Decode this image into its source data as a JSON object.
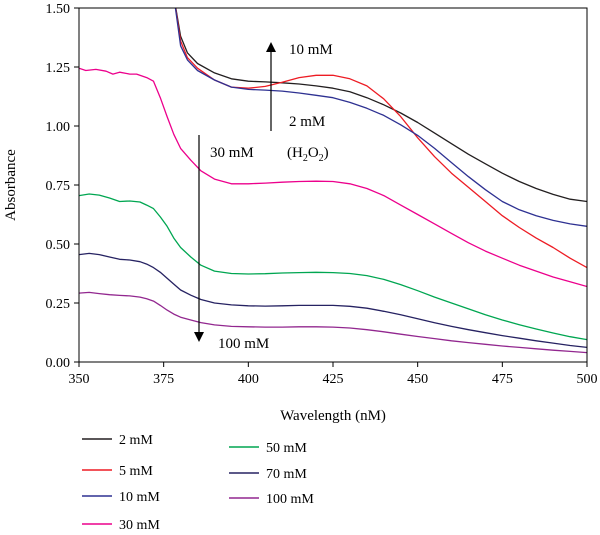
{
  "chart_data": {
    "type": "line",
    "title": "",
    "xlabel": "Wavelength (nM)",
    "ylabel": "Absorbance",
    "xlim": [
      350,
      500
    ],
    "ylim": [
      0,
      1.5
    ],
    "x_ticks": [
      "350",
      "375",
      "400",
      "425",
      "450",
      "475",
      "500"
    ],
    "y_ticks": [
      "0.00",
      "0.25",
      "0.50",
      "0.75",
      "1.00",
      "1.25",
      "1.50"
    ],
    "grid": false,
    "legend_position": "bottom",
    "annotations": {
      "up_top": "10 mM",
      "up_bottom": "2 mM",
      "h2o2_open": "(H",
      "h2o2_sub1": "2",
      "h2o2_mid": "O",
      "h2o2_sub2": "2",
      "h2o2_close": ")",
      "down_top": "30 mM",
      "down_bottom": "100 mM"
    },
    "series": [
      {
        "name": "2 mM",
        "color": "#231f20",
        "points": [
          [
            378,
            1.55
          ],
          [
            380,
            1.38
          ],
          [
            382,
            1.31
          ],
          [
            385,
            1.265
          ],
          [
            390,
            1.225
          ],
          [
            395,
            1.2
          ],
          [
            400,
            1.19
          ],
          [
            405,
            1.187
          ],
          [
            410,
            1.183
          ],
          [
            415,
            1.178
          ],
          [
            420,
            1.17
          ],
          [
            425,
            1.16
          ],
          [
            430,
            1.145
          ],
          [
            435,
            1.12
          ],
          [
            440,
            1.09
          ],
          [
            445,
            1.055
          ],
          [
            450,
            1.015
          ],
          [
            455,
            0.97
          ],
          [
            460,
            0.925
          ],
          [
            465,
            0.88
          ],
          [
            470,
            0.84
          ],
          [
            475,
            0.8
          ],
          [
            480,
            0.765
          ],
          [
            485,
            0.735
          ],
          [
            490,
            0.71
          ],
          [
            495,
            0.69
          ],
          [
            500,
            0.68
          ]
        ]
      },
      {
        "name": "5 mM",
        "color": "#ed1c24",
        "points": [
          [
            378,
            1.55
          ],
          [
            380,
            1.36
          ],
          [
            382,
            1.29
          ],
          [
            385,
            1.245
          ],
          [
            390,
            1.195
          ],
          [
            395,
            1.165
          ],
          [
            400,
            1.16
          ],
          [
            405,
            1.168
          ],
          [
            410,
            1.185
          ],
          [
            415,
            1.205
          ],
          [
            420,
            1.215
          ],
          [
            425,
            1.215
          ],
          [
            430,
            1.2
          ],
          [
            435,
            1.17
          ],
          [
            440,
            1.115
          ],
          [
            445,
            1.04
          ],
          [
            450,
            0.95
          ],
          [
            455,
            0.87
          ],
          [
            460,
            0.8
          ],
          [
            465,
            0.74
          ],
          [
            470,
            0.68
          ],
          [
            475,
            0.62
          ],
          [
            480,
            0.57
          ],
          [
            485,
            0.525
          ],
          [
            490,
            0.485
          ],
          [
            495,
            0.44
          ],
          [
            500,
            0.4
          ]
        ]
      },
      {
        "name": "10 mM",
        "color": "#2e3192",
        "points": [
          [
            378,
            1.55
          ],
          [
            380,
            1.34
          ],
          [
            382,
            1.28
          ],
          [
            385,
            1.235
          ],
          [
            390,
            1.195
          ],
          [
            395,
            1.165
          ],
          [
            400,
            1.155
          ],
          [
            405,
            1.152
          ],
          [
            410,
            1.148
          ],
          [
            415,
            1.14
          ],
          [
            420,
            1.13
          ],
          [
            425,
            1.12
          ],
          [
            430,
            1.1
          ],
          [
            435,
            1.075
          ],
          [
            440,
            1.045
          ],
          [
            445,
            1.005
          ],
          [
            450,
            0.96
          ],
          [
            455,
            0.905
          ],
          [
            460,
            0.845
          ],
          [
            465,
            0.785
          ],
          [
            470,
            0.73
          ],
          [
            475,
            0.68
          ],
          [
            480,
            0.645
          ],
          [
            485,
            0.62
          ],
          [
            490,
            0.6
          ],
          [
            495,
            0.585
          ],
          [
            500,
            0.575
          ]
        ]
      },
      {
        "name": "30 mM",
        "color": "#ec008c",
        "points": [
          [
            350,
            1.245
          ],
          [
            352,
            1.235
          ],
          [
            355,
            1.24
          ],
          [
            358,
            1.232
          ],
          [
            360,
            1.22
          ],
          [
            362,
            1.228
          ],
          [
            365,
            1.22
          ],
          [
            367,
            1.22
          ],
          [
            370,
            1.205
          ],
          [
            372,
            1.19
          ],
          [
            374,
            1.12
          ],
          [
            376,
            1.04
          ],
          [
            378,
            0.965
          ],
          [
            380,
            0.905
          ],
          [
            383,
            0.855
          ],
          [
            386,
            0.81
          ],
          [
            390,
            0.775
          ],
          [
            395,
            0.755
          ],
          [
            400,
            0.755
          ],
          [
            405,
            0.758
          ],
          [
            410,
            0.762
          ],
          [
            415,
            0.765
          ],
          [
            420,
            0.766
          ],
          [
            425,
            0.765
          ],
          [
            430,
            0.755
          ],
          [
            435,
            0.735
          ],
          [
            440,
            0.705
          ],
          [
            445,
            0.665
          ],
          [
            450,
            0.625
          ],
          [
            455,
            0.585
          ],
          [
            460,
            0.545
          ],
          [
            465,
            0.505
          ],
          [
            470,
            0.47
          ],
          [
            475,
            0.44
          ],
          [
            480,
            0.41
          ],
          [
            485,
            0.385
          ],
          [
            490,
            0.36
          ],
          [
            495,
            0.34
          ],
          [
            500,
            0.32
          ]
        ]
      },
      {
        "name": "50 mM",
        "color": "#00a651",
        "points": [
          [
            350,
            0.705
          ],
          [
            353,
            0.712
          ],
          [
            356,
            0.707
          ],
          [
            359,
            0.695
          ],
          [
            362,
            0.68
          ],
          [
            365,
            0.682
          ],
          [
            368,
            0.678
          ],
          [
            370,
            0.665
          ],
          [
            372,
            0.65
          ],
          [
            374,
            0.615
          ],
          [
            376,
            0.575
          ],
          [
            378,
            0.525
          ],
          [
            380,
            0.485
          ],
          [
            383,
            0.445
          ],
          [
            386,
            0.41
          ],
          [
            390,
            0.385
          ],
          [
            395,
            0.375
          ],
          [
            400,
            0.373
          ],
          [
            405,
            0.374
          ],
          [
            410,
            0.377
          ],
          [
            415,
            0.379
          ],
          [
            420,
            0.38
          ],
          [
            425,
            0.379
          ],
          [
            430,
            0.375
          ],
          [
            435,
            0.366
          ],
          [
            440,
            0.35
          ],
          [
            445,
            0.328
          ],
          [
            450,
            0.302
          ],
          [
            455,
            0.275
          ],
          [
            460,
            0.25
          ],
          [
            465,
            0.225
          ],
          [
            470,
            0.2
          ],
          [
            475,
            0.178
          ],
          [
            480,
            0.158
          ],
          [
            485,
            0.14
          ],
          [
            490,
            0.123
          ],
          [
            495,
            0.107
          ],
          [
            500,
            0.095
          ]
        ]
      },
      {
        "name": "70 mM",
        "color": "#262262",
        "points": [
          [
            350,
            0.455
          ],
          [
            353,
            0.46
          ],
          [
            356,
            0.455
          ],
          [
            359,
            0.445
          ],
          [
            362,
            0.435
          ],
          [
            365,
            0.432
          ],
          [
            368,
            0.425
          ],
          [
            370,
            0.415
          ],
          [
            372,
            0.4
          ],
          [
            374,
            0.38
          ],
          [
            376,
            0.355
          ],
          [
            378,
            0.33
          ],
          [
            380,
            0.305
          ],
          [
            383,
            0.283
          ],
          [
            386,
            0.265
          ],
          [
            390,
            0.25
          ],
          [
            395,
            0.242
          ],
          [
            400,
            0.238
          ],
          [
            405,
            0.237
          ],
          [
            410,
            0.238
          ],
          [
            415,
            0.24
          ],
          [
            420,
            0.24
          ],
          [
            425,
            0.24
          ],
          [
            430,
            0.236
          ],
          [
            435,
            0.228
          ],
          [
            440,
            0.215
          ],
          [
            445,
            0.2
          ],
          [
            450,
            0.183
          ],
          [
            455,
            0.166
          ],
          [
            460,
            0.151
          ],
          [
            465,
            0.137
          ],
          [
            470,
            0.124
          ],
          [
            475,
            0.112
          ],
          [
            480,
            0.101
          ],
          [
            485,
            0.09
          ],
          [
            490,
            0.08
          ],
          [
            495,
            0.07
          ],
          [
            500,
            0.062
          ]
        ]
      },
      {
        "name": "100 mM",
        "color": "#92278f",
        "points": [
          [
            350,
            0.292
          ],
          [
            353,
            0.295
          ],
          [
            356,
            0.29
          ],
          [
            359,
            0.285
          ],
          [
            362,
            0.282
          ],
          [
            365,
            0.28
          ],
          [
            368,
            0.275
          ],
          [
            370,
            0.268
          ],
          [
            372,
            0.258
          ],
          [
            374,
            0.24
          ],
          [
            376,
            0.22
          ],
          [
            378,
            0.203
          ],
          [
            380,
            0.19
          ],
          [
            383,
            0.178
          ],
          [
            386,
            0.167
          ],
          [
            390,
            0.157
          ],
          [
            395,
            0.151
          ],
          [
            400,
            0.149
          ],
          [
            405,
            0.148
          ],
          [
            410,
            0.148
          ],
          [
            415,
            0.149
          ],
          [
            420,
            0.149
          ],
          [
            425,
            0.148
          ],
          [
            430,
            0.144
          ],
          [
            435,
            0.137
          ],
          [
            440,
            0.128
          ],
          [
            445,
            0.118
          ],
          [
            450,
            0.108
          ],
          [
            455,
            0.099
          ],
          [
            460,
            0.09
          ],
          [
            465,
            0.082
          ],
          [
            470,
            0.075
          ],
          [
            475,
            0.068
          ],
          [
            480,
            0.062
          ],
          [
            485,
            0.056
          ],
          [
            490,
            0.05
          ],
          [
            495,
            0.045
          ],
          [
            500,
            0.04
          ]
        ]
      }
    ]
  }
}
